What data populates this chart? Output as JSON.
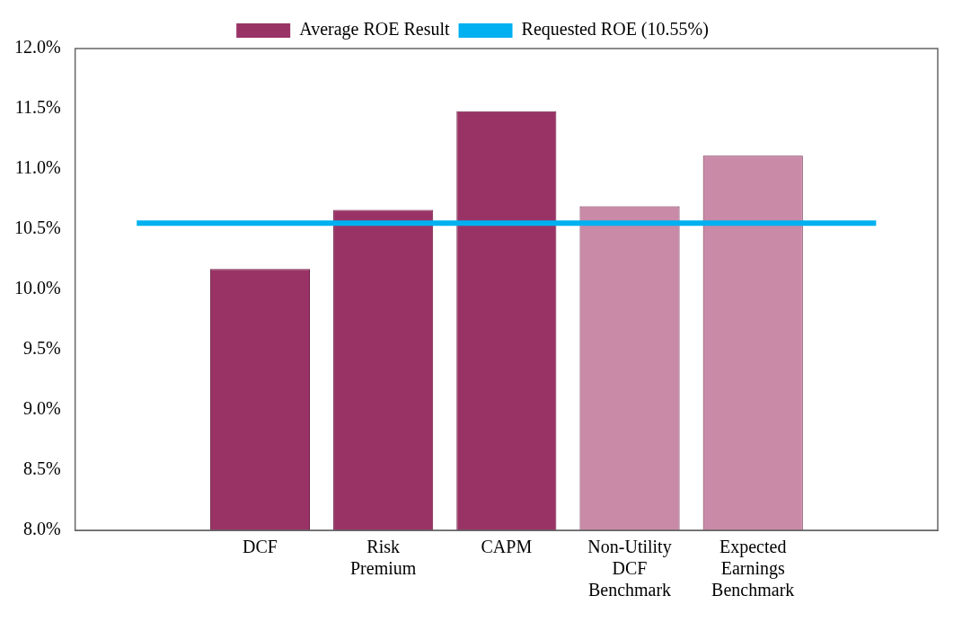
{
  "chart_data": {
    "type": "bar",
    "categories": [
      null,
      "DCF",
      "Risk Premium",
      "CAPM",
      "Non-Utility DCF Benchmark",
      "Expected Earnings Benchmark",
      null
    ],
    "series": [
      {
        "name": "Average ROE Result",
        "color": "#993366",
        "colors": [
          "#993366",
          "#993366",
          "#993366",
          "#993366",
          "#c98aa8",
          "#c98aa8",
          "#993366"
        ],
        "values": [
          null,
          10.17,
          10.66,
          11.48,
          10.69,
          11.11,
          null
        ]
      },
      {
        "name": "Requested ROE (10.55%)",
        "type": "line",
        "color": "#00b0f0",
        "values": [
          10.55,
          10.55,
          10.55,
          10.55,
          10.55,
          10.55,
          10.55
        ]
      }
    ],
    "ylim": [
      8,
      12
    ],
    "yticks": [
      {
        "value": 8,
        "label": "8.0%"
      },
      {
        "value": 8.5,
        "label": "8.5%"
      },
      {
        "value": 9,
        "label": "9.0%"
      },
      {
        "value": 9.5,
        "label": "9.5%"
      },
      {
        "value": 10,
        "label": "10.0%"
      },
      {
        "value": 10.5,
        "label": "10.5%"
      },
      {
        "value": 11,
        "label": "11.0%"
      },
      {
        "value": 11.5,
        "label": "11.5%"
      },
      {
        "value": 12,
        "label": "12.0%"
      }
    ],
    "grid": false,
    "legend": "top",
    "marker": "none"
  }
}
